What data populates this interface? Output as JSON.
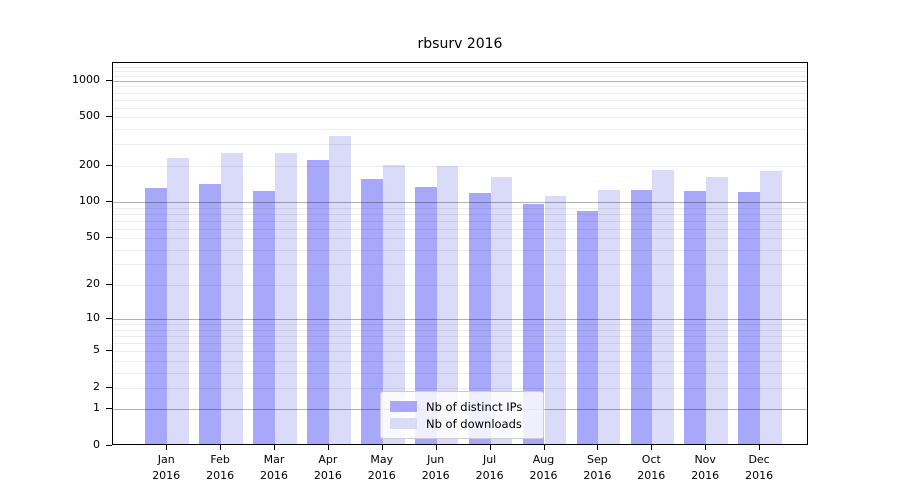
{
  "title": "rbsurv 2016",
  "chart_data": {
    "type": "bar",
    "title": "rbsurv 2016",
    "categories": [
      "Jan 2016",
      "Feb 2016",
      "Mar 2016",
      "Apr 2016",
      "May 2016",
      "Jun 2016",
      "Jul 2016",
      "Aug 2016",
      "Sep 2016",
      "Oct 2016",
      "Nov 2016",
      "Dec 2016"
    ],
    "series": [
      {
        "name": "Nb of distinct IPs",
        "color": "#a8a8fa",
        "values": [
          128,
          139,
          120,
          220,
          151,
          131,
          116,
          94,
          83,
          124,
          122,
          118
        ]
      },
      {
        "name": "Nb of downloads",
        "color": "#dadaf9",
        "values": [
          226,
          248,
          250,
          345,
          200,
          196,
          157,
          111,
          123,
          180,
          159,
          178
        ]
      }
    ],
    "xlabel": "",
    "ylabel": "",
    "yscale": "log1p",
    "yticks": [
      0,
      1,
      2,
      5,
      10,
      20,
      50,
      100,
      200,
      500,
      1000
    ],
    "ylim": [
      0,
      1400
    ],
    "grid": "horizontal major and minor log gridlines, drawn over bars",
    "legend_position": "lower center inside plot"
  },
  "colors": {
    "background": "#ffffff",
    "axis": "#000000",
    "grid_major": "rgba(0,0,0,0.30)",
    "grid_minor": "rgba(0,0,0,0.07)",
    "legend_border": "#cccccc",
    "legend_background": "rgba(255,255,255,0.82)"
  }
}
